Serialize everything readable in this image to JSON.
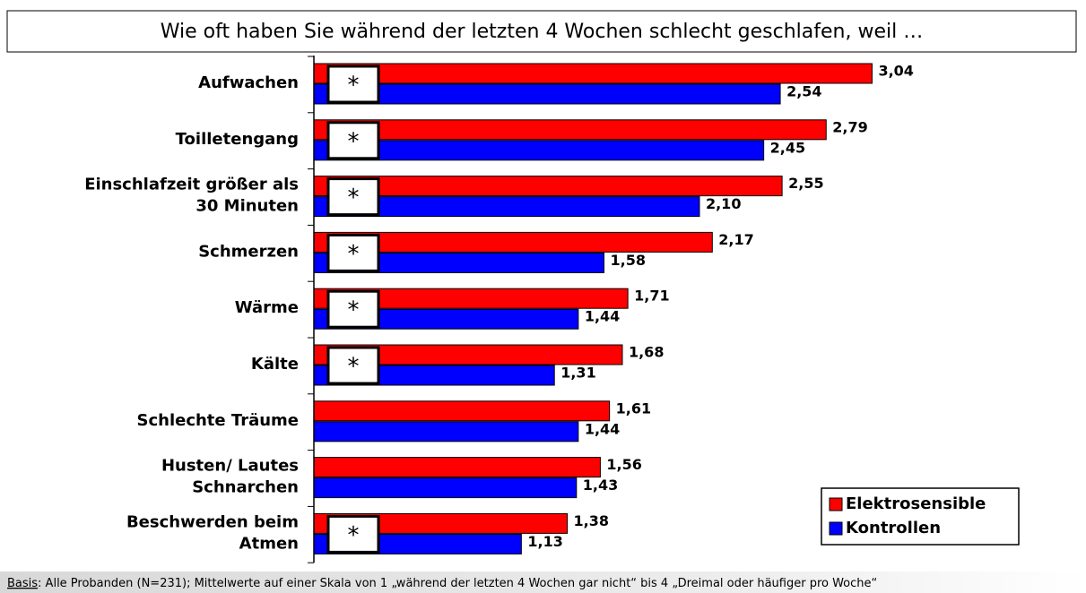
{
  "chart_data": {
    "type": "grouped-hbar",
    "title": "Wie oft haben Sie während der letzten 4 Wochen schlecht geschlafen, weil …",
    "categories": [
      "Aufwachen",
      "Toilletengang",
      "Einschlafzeit größer als\n30 Minuten",
      "Schmerzen",
      "Wärme",
      "Kälte",
      "Schlechte Träume",
      "Husten/ Lautes\nSchnarchen",
      "Beschwerden beim\nAtmen"
    ],
    "series": [
      {
        "name": "Elektrosensible",
        "color": "#ff0000",
        "values": [
          3.04,
          2.79,
          2.55,
          2.17,
          1.71,
          1.68,
          1.61,
          1.56,
          1.38
        ],
        "value_labels": [
          "3,04",
          "2,79",
          "2,55",
          "2,17",
          "1,71",
          "1,68",
          "1,61",
          "1,56",
          "1,38"
        ]
      },
      {
        "name": "Kontrollen",
        "color": "#0000ff",
        "values": [
          2.54,
          2.45,
          2.1,
          1.58,
          1.44,
          1.31,
          1.44,
          1.43,
          1.13
        ],
        "value_labels": [
          "2,54",
          "2,45",
          "2,10",
          "1,58",
          "1,44",
          "1,31",
          "1,44",
          "1,43",
          "1,13"
        ]
      }
    ],
    "markers": [
      "*",
      "*",
      "*",
      "*",
      "*",
      "*",
      null,
      null,
      "*"
    ],
    "xlim": [
      0,
      4
    ],
    "legend": "lower right",
    "footnote_label": "Basis",
    "footnote": ": Alle Probanden (N=231); Mittelwerte auf einer Skala von 1 „während der letzten 4 Wochen gar nicht“ bis 4 „Dreimal oder häufiger pro Woche“"
  }
}
